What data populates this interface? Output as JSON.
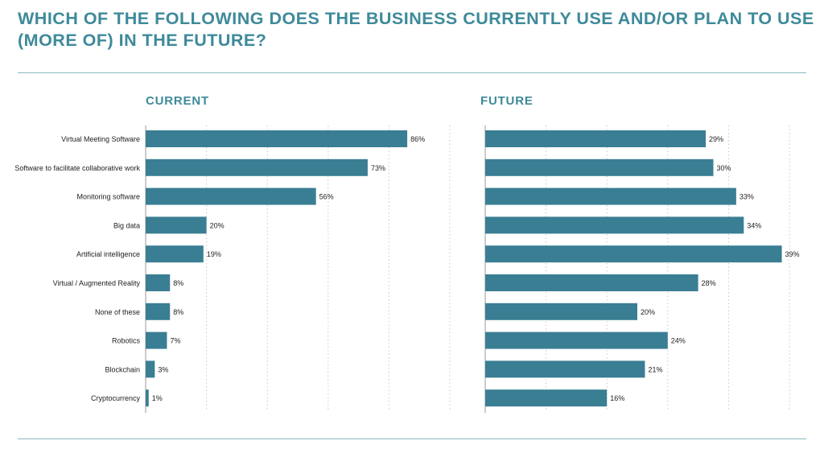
{
  "title": "WHICH OF THE FOLLOWING DOES THE BUSINESS CURRENTLY USE AND/OR PLAN TO USE (MORE OF) IN THE FUTURE?",
  "colors": {
    "bar": "#3a7e93",
    "title": "#3e8a9a",
    "rule": "#8ab8c2",
    "grid": "#c8c8c8",
    "axis": "#9a9a9a"
  },
  "chart_data": [
    {
      "type": "bar",
      "orientation": "horizontal",
      "title": "CURRENT",
      "categories": [
        "Virtual Meeting Software",
        "Software to facilitate collaborative work",
        "Monitoring software",
        "Big data",
        "Artificial intelligence",
        "Virtual / Augmented Reality",
        "None of these",
        "Robotics",
        "Blockchain",
        "Cryptocurrency"
      ],
      "values": [
        86,
        73,
        56,
        20,
        19,
        8,
        8,
        7,
        3,
        1
      ],
      "labels": [
        "86%",
        "73%",
        "56%",
        "20%",
        "19%",
        "8%",
        "8%",
        "7%",
        "3%",
        "1%"
      ],
      "xlim": [
        0,
        100
      ],
      "grid": true
    },
    {
      "type": "bar",
      "orientation": "horizontal",
      "title": "FUTURE",
      "categories": [
        "Virtual Meeting Software",
        "Software to facilitate collaborative work",
        "Monitoring software",
        "Big data",
        "Artificial intelligence",
        "Virtual / Augmented Reality",
        "None of these",
        "Robotics",
        "Blockchain",
        "Cryptocurrency"
      ],
      "values": [
        29,
        30,
        33,
        34,
        39,
        28,
        20,
        24,
        21,
        16
      ],
      "labels": [
        "29%",
        "30%",
        "33%",
        "34%",
        "39%",
        "28%",
        "20%",
        "24%",
        "21%",
        "16%"
      ],
      "xlim": [
        0,
        40
      ],
      "grid": true
    }
  ]
}
